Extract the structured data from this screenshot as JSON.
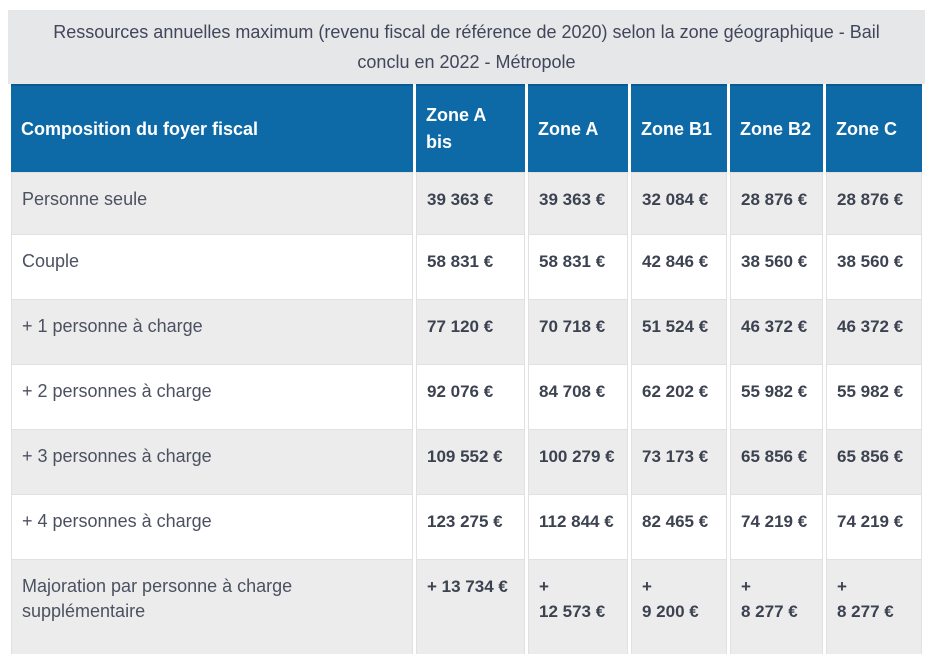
{
  "title": "Ressources annuelles maximum (revenu fiscal de référence de 2020) selon la zone géographique - Bail\nconclu en 2022 - Métropole",
  "table": {
    "columns": [
      "Composition du foyer fiscal",
      "Zone A\nbis",
      "Zone A",
      "Zone B1",
      "Zone B2",
      "Zone C"
    ],
    "rows": [
      {
        "label": "Personne seule",
        "values": [
          "39 363 €",
          "39 363 €",
          "32 084 €",
          "28 876 €",
          "28 876 €"
        ]
      },
      {
        "label": "Couple",
        "values": [
          "58 831 €",
          "58 831 €",
          "42 846 €",
          "38 560 €",
          "38 560 €"
        ]
      },
      {
        "label": "+ 1 personne à charge",
        "values": [
          "77 120 €",
          "70 718 €",
          "51 524 €",
          "46 372 €",
          "46 372 €"
        ]
      },
      {
        "label": "+ 2 personnes à charge",
        "values": [
          "92 076 €",
          "84 708 €",
          "62 202 €",
          "55 982 €",
          "55 982 €"
        ]
      },
      {
        "label": "+ 3 personnes à charge",
        "values": [
          "109 552 €",
          "100 279 €",
          "73 173 €",
          "65 856 €",
          "65 856 €"
        ]
      },
      {
        "label": "+ 4 personnes à charge",
        "values": [
          "123 275 €",
          "112 844 €",
          "82 465 €",
          "74 219 €",
          "74 219 €"
        ]
      },
      {
        "label": "Majoration par personne à charge\nsupplémentaire",
        "values": [
          "+ 13 734 €",
          "+\n12 573 €",
          "+\n9 200 €",
          "+\n8 277 €",
          "+\n8 277 €"
        ]
      }
    ]
  },
  "colors": {
    "header_bg": "#0e6aa6",
    "header_edge": "#0a5a8e",
    "title_bg": "#e6e7e8",
    "title_text": "#41465a",
    "stripe_bg": "#ececec",
    "value_text": "#3c4250"
  }
}
